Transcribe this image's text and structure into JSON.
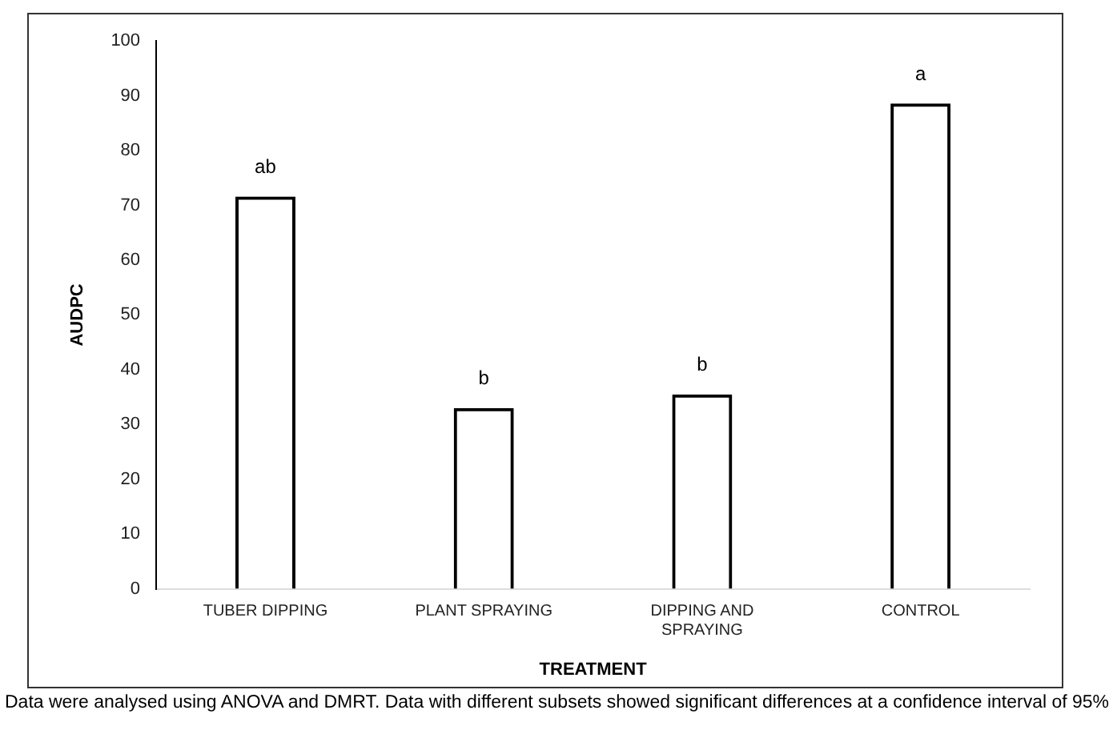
{
  "chart_data": {
    "type": "bar",
    "xlabel": "TREATMENT",
    "ylabel": "AUDPC",
    "categories": [
      "TUBER DIPPING",
      "PLANT SPRAYING",
      "DIPPING AND SPRAYING",
      "CONTROL"
    ],
    "values": [
      71.6,
      33.0,
      35.5,
      88.6
    ],
    "color": "#000000",
    "ylim": [
      0,
      100
    ],
    "yticks": [
      0,
      10,
      20,
      30,
      40,
      50,
      60,
      70,
      80,
      90,
      100
    ],
    "grid": false,
    "legend": false,
    "annotations": [
      {
        "text": "ab",
        "x": "TUBER DIPPING",
        "y": 71.6
      },
      {
        "text": "b",
        "x": "PLANT SPRAYING",
        "y": 33.0
      },
      {
        "text": "b",
        "x": "DIPPING AND SPRAYING",
        "y": 35.5
      },
      {
        "text": "a",
        "x": "CONTROL",
        "y": 88.6
      },
      "Data were analysed using ANOVA and DMRT. Data with different subsets showed significant differences at a confidence interval of 95%"
    ]
  }
}
